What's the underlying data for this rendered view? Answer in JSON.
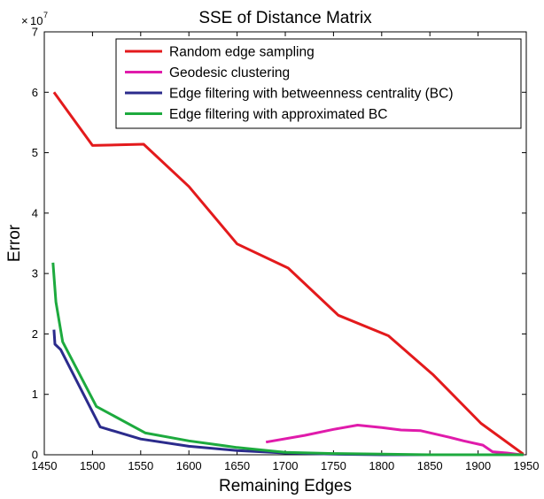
{
  "chart_data": {
    "type": "line",
    "title": "SSE of Distance Matrix",
    "xlabel": "Remaining Edges",
    "ylabel": "Error",
    "y_scale_base": "10",
    "y_scale_exponent": "7",
    "xlim": [
      1450,
      1950
    ],
    "ylim": [
      0,
      7
    ],
    "x_ticks": [
      1450,
      1500,
      1550,
      1600,
      1650,
      1700,
      1750,
      1800,
      1850,
      1900,
      1950
    ],
    "y_ticks": [
      0,
      1,
      2,
      3,
      4,
      5,
      6,
      7
    ],
    "grid": false,
    "legend_position": "top-right",
    "series": [
      {
        "name": "Random edge sampling",
        "color": "#e31a1c",
        "points": [
          [
            1460,
            6.0
          ],
          [
            1500,
            5.12
          ],
          [
            1553,
            5.14
          ],
          [
            1600,
            4.44
          ],
          [
            1650,
            3.49
          ],
          [
            1703,
            3.09
          ],
          [
            1755,
            2.31
          ],
          [
            1807,
            1.97
          ],
          [
            1853,
            1.33
          ],
          [
            1903,
            0.52
          ],
          [
            1947,
            0.01
          ]
        ]
      },
      {
        "name": "Geodesic clustering",
        "color": "#e01bab",
        "points": [
          [
            1680,
            0.21
          ],
          [
            1720,
            0.32
          ],
          [
            1750,
            0.42
          ],
          [
            1775,
            0.49
          ],
          [
            1800,
            0.45
          ],
          [
            1820,
            0.41
          ],
          [
            1840,
            0.4
          ],
          [
            1870,
            0.29
          ],
          [
            1885,
            0.23
          ],
          [
            1905,
            0.16
          ],
          [
            1915,
            0.05
          ],
          [
            1930,
            0.03
          ],
          [
            1945,
            0.0
          ]
        ]
      },
      {
        "name": "Edge filtering with betweenness centrality (BC)",
        "color": "#2b2b8c",
        "points": [
          [
            1460,
            2.07
          ],
          [
            1461,
            1.83
          ],
          [
            1467,
            1.74
          ],
          [
            1508,
            0.46
          ],
          [
            1550,
            0.26
          ],
          [
            1600,
            0.14
          ],
          [
            1650,
            0.07
          ],
          [
            1700,
            0.03
          ],
          [
            1750,
            0.01
          ],
          [
            1800,
            0.0
          ],
          [
            1850,
            0.0
          ],
          [
            1900,
            0.0
          ],
          [
            1947,
            0.0
          ]
        ]
      },
      {
        "name": "Edge filtering with approximated BC",
        "color": "#1daa3e",
        "points": [
          [
            1459,
            3.18
          ],
          [
            1462,
            2.53
          ],
          [
            1469,
            1.87
          ],
          [
            1504,
            0.8
          ],
          [
            1555,
            0.36
          ],
          [
            1600,
            0.23
          ],
          [
            1650,
            0.12
          ],
          [
            1700,
            0.04
          ],
          [
            1750,
            0.02
          ],
          [
            1800,
            0.01
          ],
          [
            1850,
            0.0
          ],
          [
            1900,
            0.0
          ],
          [
            1947,
            0.0
          ]
        ]
      }
    ]
  }
}
